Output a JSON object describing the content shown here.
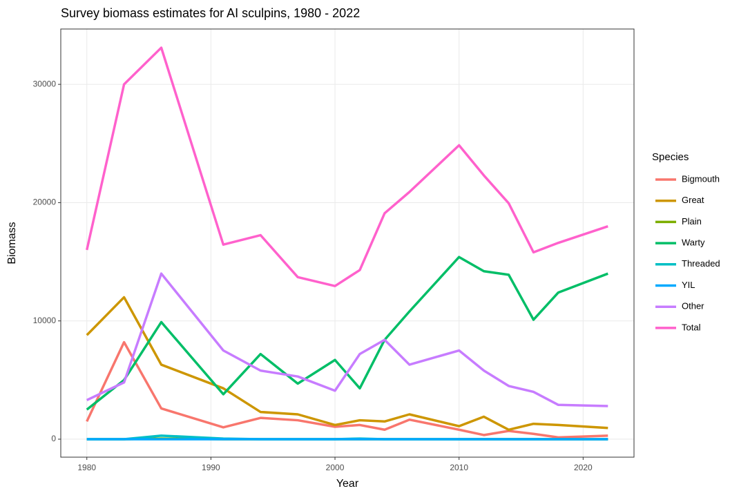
{
  "chart_data": {
    "type": "line",
    "title": "Survey biomass estimates for AI sculpins, 1980 - 2022",
    "x_label": "Year",
    "y_label": "Biomass",
    "legend_title": "Species",
    "legend_position": "right",
    "grid": true,
    "x": [
      1980,
      1983,
      1986,
      1991,
      1994,
      1997,
      2000,
      2002,
      2004,
      2006,
      2010,
      2012,
      2014,
      2016,
      2018,
      2022
    ],
    "xlim": [
      1977.9,
      2024.1
    ],
    "xticks": [
      1980,
      1990,
      2000,
      2010,
      2020
    ],
    "ylim": [
      -1520,
      34680
    ],
    "yticks": [
      0,
      10000,
      20000,
      30000
    ],
    "series": [
      {
        "name": "Bigmouth",
        "color": "#F8766D",
        "values": [
          1500,
          8200,
          2600,
          1000,
          1800,
          1600,
          1050,
          1200,
          800,
          1650,
          800,
          350,
          700,
          450,
          150,
          300
        ]
      },
      {
        "name": "Great",
        "color": "#CD9600",
        "values": [
          8800,
          12000,
          6300,
          4300,
          2300,
          2100,
          1200,
          1600,
          1500,
          2100,
          1100,
          1900,
          800,
          1300,
          1200,
          950
        ]
      },
      {
        "name": "Plain",
        "color": "#7CAE00",
        "values": [
          0,
          0,
          50,
          0,
          0,
          0,
          0,
          0,
          0,
          0,
          0,
          0,
          0,
          0,
          0,
          0
        ]
      },
      {
        "name": "Warty",
        "color": "#00BE67",
        "values": [
          2500,
          5000,
          9900,
          3800,
          7200,
          4700,
          6700,
          4300,
          8400,
          10800,
          15400,
          14200,
          13900,
          10100,
          12400,
          14000
        ]
      },
      {
        "name": "Threaded",
        "color": "#00BFC4",
        "values": [
          0,
          0,
          300,
          50,
          0,
          0,
          0,
          50,
          0,
          0,
          0,
          0,
          0,
          0,
          0,
          0
        ]
      },
      {
        "name": "YIL",
        "color": "#00A9FF",
        "values": [
          0,
          0,
          0,
          0,
          0,
          0,
          0,
          0,
          0,
          0,
          0,
          0,
          0,
          0,
          0,
          0
        ]
      },
      {
        "name": "Other",
        "color": "#C77CFF",
        "values": [
          3300,
          4800,
          14000,
          7500,
          5800,
          5300,
          4100,
          7200,
          8400,
          6300,
          7500,
          5800,
          4500,
          4000,
          2900,
          2800
        ]
      },
      {
        "name": "Total",
        "color": "#FF61CC",
        "values": [
          16000,
          30000,
          33100,
          16450,
          17250,
          13700,
          12950,
          14300,
          19100,
          20900,
          24850,
          22300,
          19950,
          15800,
          16600,
          18000
        ]
      }
    ]
  }
}
